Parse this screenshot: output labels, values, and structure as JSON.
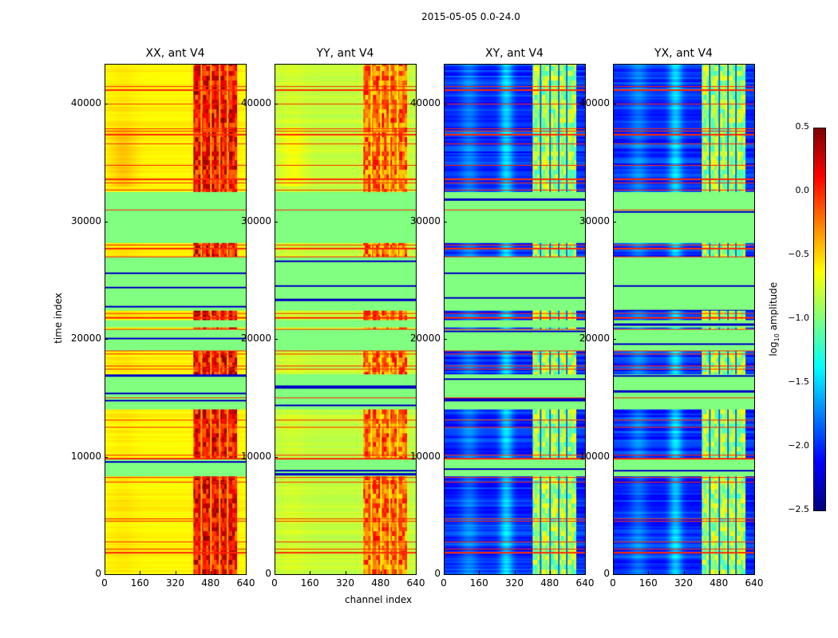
{
  "chart_data": {
    "type": "heatmap",
    "title": "2015-05-05 0.0-24.0",
    "xlabel": "channel index",
    "ylabel": "time index",
    "xlim": [
      0,
      640
    ],
    "ylim": [
      0,
      43400
    ],
    "xticks": [
      "0",
      "160",
      "320",
      "480",
      "640"
    ],
    "xtick_values": [
      0,
      160,
      320,
      480,
      640
    ],
    "yticks": [
      "0",
      "10000",
      "20000",
      "30000",
      "40000"
    ],
    "ytick_values": [
      0,
      10000,
      20000,
      30000,
      40000
    ],
    "colormap": "jet",
    "colorbar": {
      "label_prefix": "log",
      "label_sub": "10",
      "label_suffix": " amplitude",
      "range": [
        -2.5,
        0.5
      ],
      "ticks": [
        "0.5",
        "0.0",
        "−0.5",
        "−1.0",
        "−1.5",
        "−2.0",
        "−2.5"
      ],
      "tick_values": [
        0.5,
        0,
        -0.5,
        -1,
        -1.5,
        -2,
        -2.5
      ]
    },
    "panels": [
      {
        "title": "XX, ant V4",
        "base_log_amplitude": -0.6,
        "rfi_channel_range": [
          400,
          600
        ],
        "rfi_log_amplitude": 0.1
      },
      {
        "title": "YY, ant V4",
        "base_log_amplitude": -0.8,
        "rfi_channel_range": [
          400,
          600
        ],
        "rfi_log_amplitude": -0.2
      },
      {
        "title": "XY, ant V4",
        "base_log_amplitude": -2.0,
        "rfi_channel_range": [
          400,
          600
        ],
        "rfi_log_amplitude": -0.9
      },
      {
        "title": "YX, ant V4",
        "base_log_amplitude": -2.0,
        "rfi_channel_range": [
          400,
          600
        ],
        "rfi_log_amplitude": -0.9
      }
    ],
    "flagged_time_ranges": [
      [
        8300,
        9800
      ],
      [
        14000,
        17000
      ],
      [
        19000,
        20800
      ],
      [
        21000,
        21600
      ],
      [
        22400,
        27000
      ],
      [
        28200,
        32500
      ]
    ],
    "flagged_log_amplitude": -1.0,
    "bright_time_lines": [
      41500,
      41200,
      40000,
      37900,
      37700,
      37400,
      36600,
      34800,
      33600,
      33300,
      32700,
      31000,
      28000,
      27700,
      27000,
      22200,
      21800,
      20800,
      19000,
      18700,
      17700,
      17400,
      15000,
      13100,
      12500,
      10100,
      9800,
      8200,
      7800,
      4700,
      4500,
      2700,
      2100,
      1800
    ],
    "bright_line_log_amplitude": 0.0
  }
}
